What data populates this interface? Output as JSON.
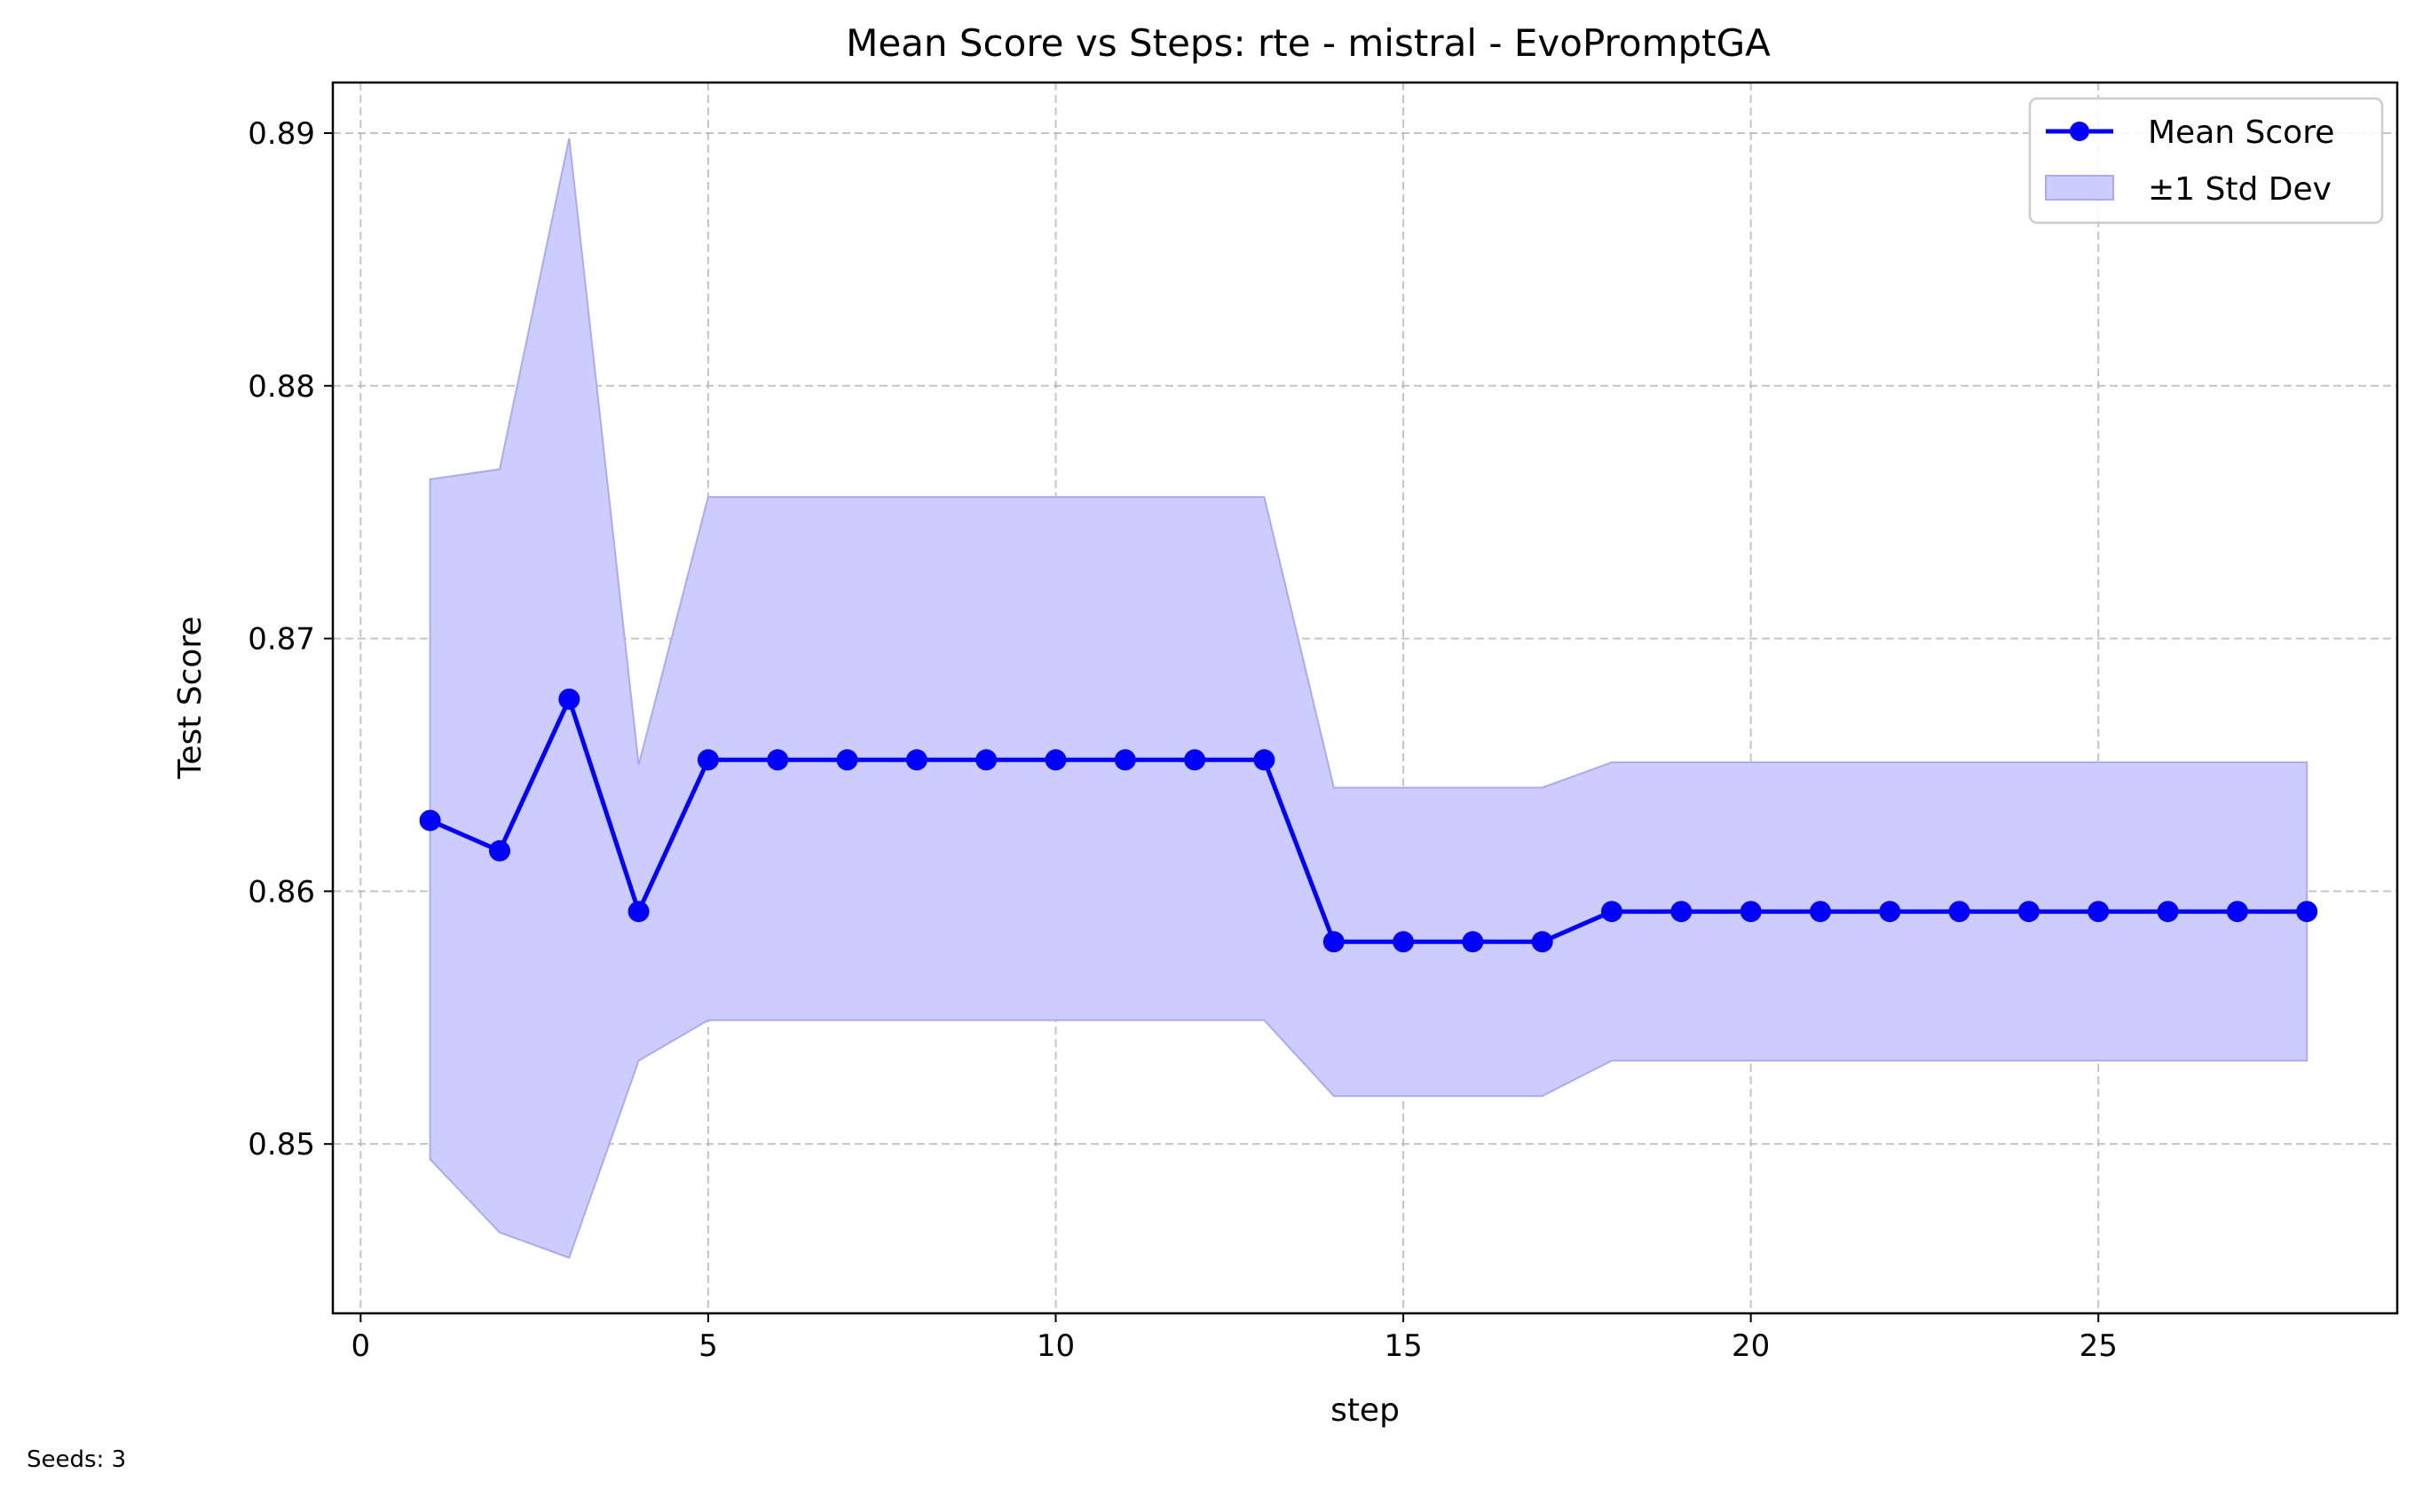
{
  "chart_data": {
    "type": "line",
    "title": "Mean Score vs Steps: rte - mistral - EvoPromptGA",
    "xlabel": "step",
    "ylabel": "Test Score",
    "xlim": [
      -0.4,
      29.3
    ],
    "ylim": [
      0.8433,
      0.892
    ],
    "x_ticks": [
      0,
      5,
      10,
      15,
      20,
      25
    ],
    "y_ticks": [
      0.85,
      0.86,
      0.87,
      0.88,
      0.89
    ],
    "grid": true,
    "legend_position": "top-right",
    "colors": {
      "line": "#0000ff",
      "band_fill": "#ccccff",
      "band_edge": "#aaaaf0"
    },
    "series": [
      {
        "name": "Mean Score",
        "x": [
          1,
          2,
          3,
          4,
          5,
          6,
          7,
          8,
          9,
          10,
          11,
          12,
          13,
          14,
          15,
          16,
          17,
          18,
          19,
          20,
          21,
          22,
          23,
          24,
          25,
          26,
          27,
          28
        ],
        "values": [
          0.8628,
          0.8616,
          0.8676,
          0.8592,
          0.8652,
          0.8652,
          0.8652,
          0.8652,
          0.8652,
          0.8652,
          0.8652,
          0.8652,
          0.8652,
          0.858,
          0.858,
          0.858,
          0.858,
          0.8592,
          0.8592,
          0.8592,
          0.8592,
          0.8592,
          0.8592,
          0.8592,
          0.8592,
          0.8592,
          0.8592,
          0.8592
        ]
      },
      {
        "name": "±1 Std Dev",
        "x": [
          1,
          2,
          3,
          4,
          5,
          6,
          7,
          8,
          9,
          10,
          11,
          12,
          13,
          14,
          15,
          16,
          17,
          18,
          19,
          20,
          21,
          22,
          23,
          24,
          25,
          26,
          27,
          28
        ],
        "lower": [
          0.8494,
          0.8465,
          0.8455,
          0.8533,
          0.8549,
          0.8549,
          0.8549,
          0.8549,
          0.8549,
          0.8549,
          0.8549,
          0.8549,
          0.8549,
          0.8519,
          0.8519,
          0.8519,
          0.8519,
          0.8533,
          0.8533,
          0.8533,
          0.8533,
          0.8533,
          0.8533,
          0.8533,
          0.8533,
          0.8533,
          0.8533,
          0.8533
        ],
        "upper": [
          0.8763,
          0.8767,
          0.8898,
          0.865,
          0.8756,
          0.8756,
          0.8756,
          0.8756,
          0.8756,
          0.8756,
          0.8756,
          0.8756,
          0.8756,
          0.8641,
          0.8641,
          0.8641,
          0.8641,
          0.8651,
          0.8651,
          0.8651,
          0.8651,
          0.8651,
          0.8651,
          0.8651,
          0.8651,
          0.8651,
          0.8651,
          0.8651
        ]
      }
    ]
  },
  "footer": {
    "seeds_text": "Seeds: 3"
  }
}
